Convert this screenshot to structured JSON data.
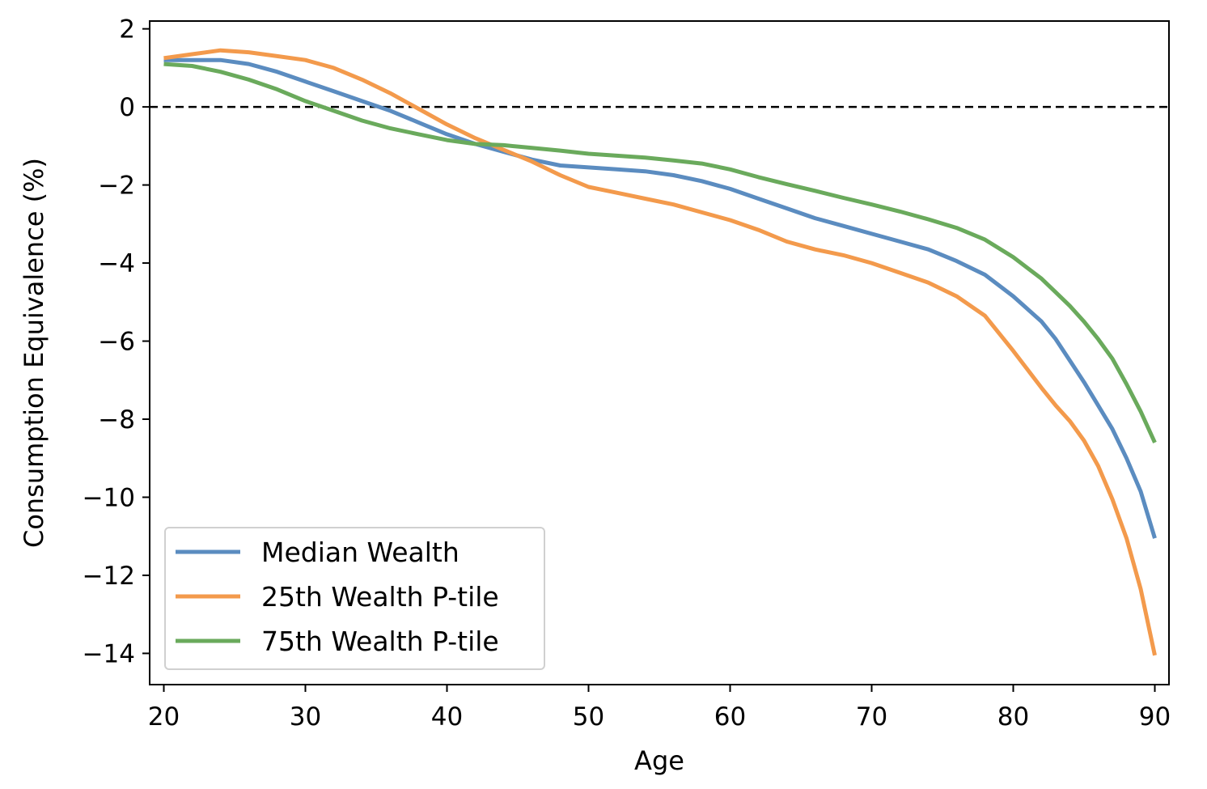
{
  "chart_data": {
    "type": "line",
    "title": "",
    "xlabel": "Age",
    "ylabel": "Consumption Equivalence (%)",
    "xlim": [
      19,
      91
    ],
    "ylim": [
      -14.8,
      2.2
    ],
    "xticks": [
      20,
      30,
      40,
      50,
      60,
      70,
      80,
      90
    ],
    "yticks": [
      2,
      0,
      -2,
      -4,
      -6,
      -8,
      -10,
      -12,
      -14
    ],
    "xtick_labels": [
      "20",
      "30",
      "40",
      "50",
      "60",
      "70",
      "80",
      "90"
    ],
    "ytick_labels": [
      "2",
      "0",
      "−2",
      "−4",
      "−6",
      "−8",
      "−10",
      "−12",
      "−14"
    ],
    "reference_line": {
      "y": 0,
      "style": "dashed",
      "color": "#000000"
    },
    "grid": false,
    "legend_position": "lower-left",
    "series": [
      {
        "name": "Median Wealth",
        "color": "#5b8cc0",
        "x": [
          20,
          22,
          24,
          26,
          28,
          30,
          32,
          34,
          36,
          38,
          40,
          42,
          44,
          46,
          48,
          50,
          52,
          54,
          56,
          58,
          60,
          62,
          64,
          66,
          68,
          70,
          72,
          74,
          76,
          78,
          80,
          82,
          83,
          84,
          85,
          86,
          87,
          88,
          89,
          90
        ],
        "y": [
          1.2,
          1.2,
          1.2,
          1.1,
          0.9,
          0.65,
          0.4,
          0.15,
          -0.1,
          -0.4,
          -0.7,
          -0.95,
          -1.15,
          -1.35,
          -1.5,
          -1.55,
          -1.6,
          -1.65,
          -1.75,
          -1.9,
          -2.1,
          -2.35,
          -2.6,
          -2.85,
          -3.05,
          -3.25,
          -3.45,
          -3.65,
          -3.95,
          -4.3,
          -4.85,
          -5.5,
          -5.95,
          -6.5,
          -7.05,
          -7.65,
          -8.25,
          -9.0,
          -9.85,
          -11.05
        ]
      },
      {
        "name": "25th Wealth P-tile",
        "color": "#f39a4c",
        "x": [
          20,
          22,
          24,
          26,
          28,
          30,
          32,
          34,
          36,
          38,
          40,
          42,
          44,
          46,
          48,
          50,
          52,
          54,
          56,
          58,
          60,
          62,
          64,
          66,
          68,
          70,
          72,
          74,
          76,
          78,
          80,
          82,
          83,
          84,
          85,
          86,
          87,
          88,
          89,
          90
        ],
        "y": [
          1.25,
          1.35,
          1.45,
          1.4,
          1.3,
          1.2,
          1.0,
          0.7,
          0.35,
          -0.05,
          -0.45,
          -0.8,
          -1.1,
          -1.4,
          -1.75,
          -2.05,
          -2.2,
          -2.35,
          -2.5,
          -2.7,
          -2.9,
          -3.15,
          -3.45,
          -3.65,
          -3.8,
          -4.0,
          -4.25,
          -4.5,
          -4.85,
          -5.35,
          -6.25,
          -7.2,
          -7.65,
          -8.05,
          -8.55,
          -9.2,
          -10.05,
          -11.05,
          -12.35,
          -14.05
        ]
      },
      {
        "name": "75th Wealth P-tile",
        "color": "#6aaa5c",
        "x": [
          20,
          22,
          24,
          26,
          28,
          30,
          32,
          34,
          36,
          38,
          40,
          42,
          44,
          46,
          48,
          50,
          52,
          54,
          56,
          58,
          60,
          62,
          64,
          66,
          68,
          70,
          72,
          74,
          76,
          78,
          80,
          82,
          83,
          84,
          85,
          86,
          87,
          88,
          89,
          90
        ],
        "y": [
          1.1,
          1.05,
          0.9,
          0.7,
          0.45,
          0.15,
          -0.1,
          -0.35,
          -0.55,
          -0.7,
          -0.85,
          -0.95,
          -0.98,
          -1.05,
          -1.12,
          -1.2,
          -1.25,
          -1.3,
          -1.37,
          -1.45,
          -1.6,
          -1.8,
          -1.98,
          -2.15,
          -2.33,
          -2.5,
          -2.68,
          -2.88,
          -3.1,
          -3.4,
          -3.85,
          -4.4,
          -4.75,
          -5.1,
          -5.5,
          -5.95,
          -6.45,
          -7.1,
          -7.8,
          -8.6
        ]
      }
    ]
  }
}
